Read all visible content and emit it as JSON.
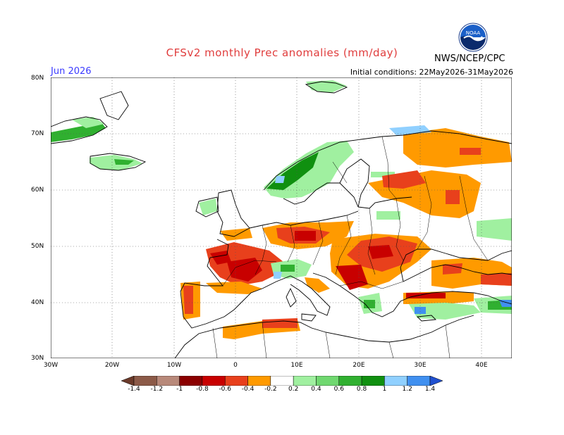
{
  "title": "CFSv2 monthly Prec anomalies (mm/day)",
  "month": "Jun 2026",
  "initial_conditions": "Initial conditions: 22May2026-31May2026",
  "org": "NWS/NCEP/CPC",
  "logo_text": "NOAA",
  "lat_labels": [
    "80N",
    "70N",
    "60N",
    "50N",
    "40N",
    "30N"
  ],
  "lon_labels": [
    "30W",
    "20W",
    "10W",
    "0",
    "10E",
    "20E",
    "30E",
    "40E"
  ],
  "colorbar": {
    "labels": [
      "-1.4",
      "-1.2",
      "-1",
      "-0.8",
      "-0.6",
      "-0.4",
      "-0.2",
      "0.2",
      "0.4",
      "0.6",
      "0.8",
      "1",
      "1.2",
      "1.4"
    ],
    "colors": [
      "#6b3a2a",
      "#8c5a48",
      "#b8897a",
      "#8b0000",
      "#c80000",
      "#e8401c",
      "#ff9a00",
      "#ffffff",
      "#a0f0a0",
      "#70d870",
      "#30b030",
      "#109010",
      "#90d0ff",
      "#4090f0",
      "#2050d0"
    ]
  },
  "colors": {
    "dry_strong": "#c80000",
    "dry_mid": "#e8401c",
    "dry_weak": "#ff9a00",
    "wet_weak": "#a0f0a0",
    "wet_mid": "#30b030",
    "wet_strong": "#109010",
    "wet_blue": "#4090f0"
  }
}
